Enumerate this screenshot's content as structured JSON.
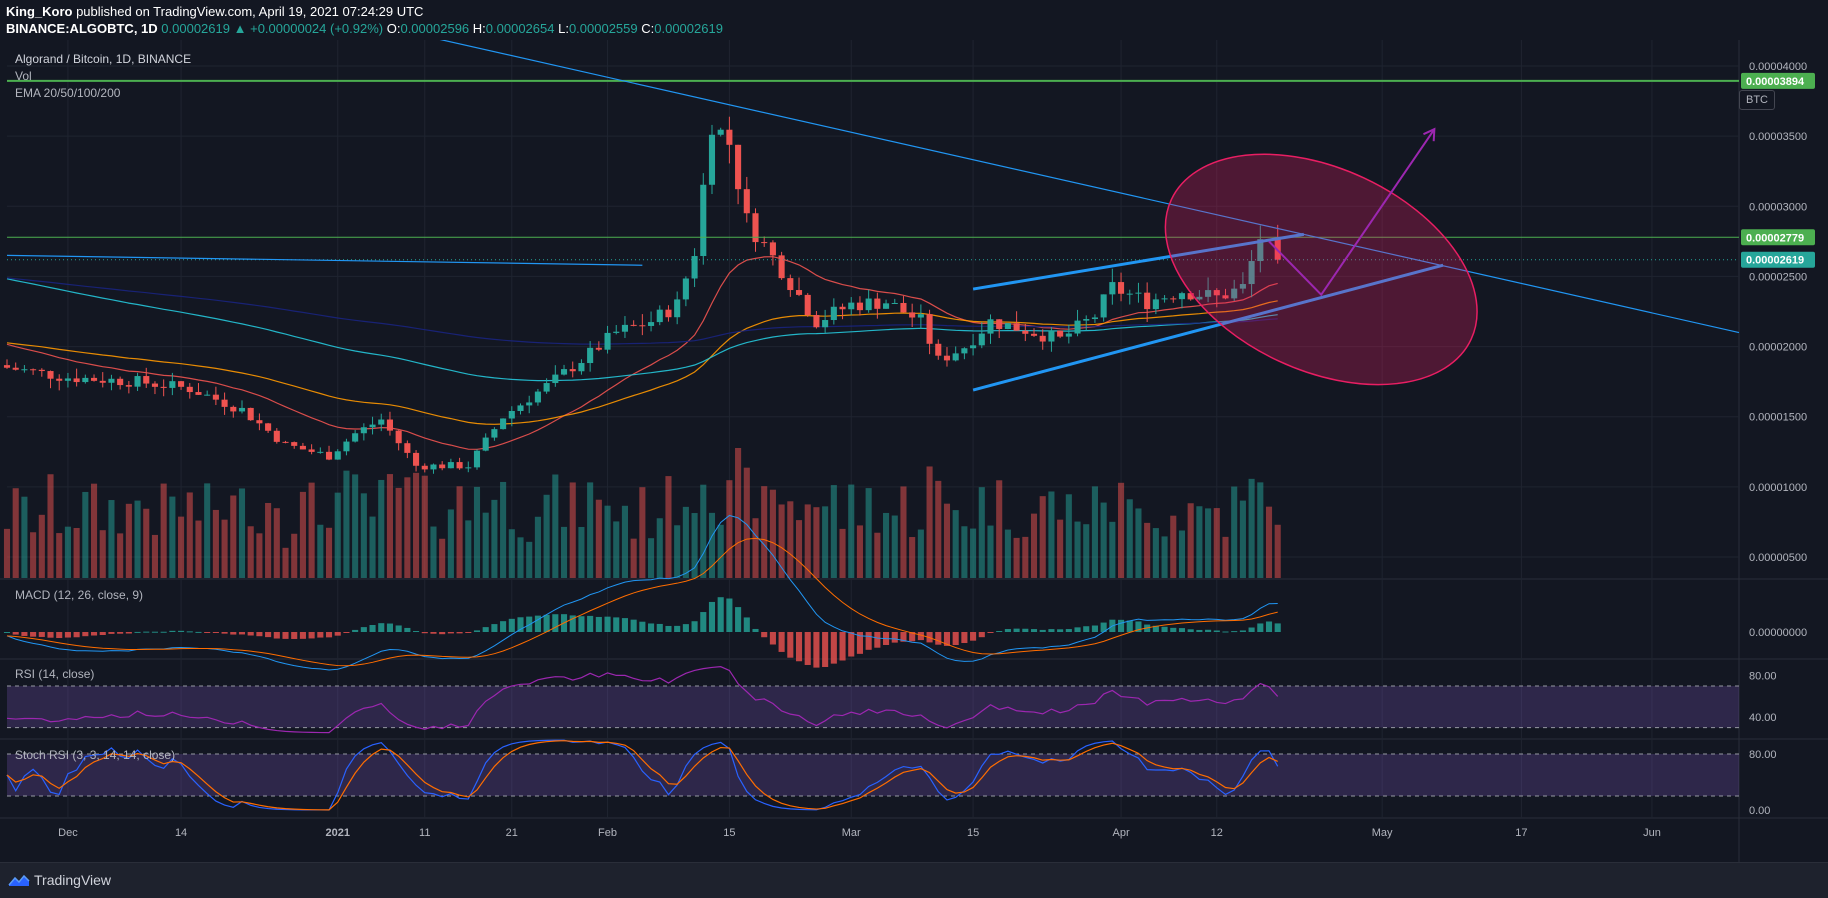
{
  "header": {
    "author": "King_Koro",
    "published_text": "published on TradingView.com, April 19, 2021 07:24:29 UTC",
    "symbol": "BINANCE:ALGOBTC, 1D",
    "last": "0.00002619",
    "change": "+0.00000024 (+0.92%)",
    "o_label": "O:",
    "o": "0.00002596",
    "h_label": "H:",
    "h": "0.00002654",
    "l_label": "L:",
    "l": "0.00002559",
    "c_label": "C:",
    "c": "0.00002619"
  },
  "legend": {
    "title": "Algorand / Bitcoin, 1D, BINANCE",
    "vol": "Vol",
    "ema": "EMA 20/50/100/200",
    "macd": "MACD (12, 26, close, 9)",
    "rsi": "RSI (14, close)",
    "stoch": "Stoch RSI (3, 3, 14, 14, close)"
  },
  "currency": "BTC",
  "footer": {
    "brand": "TradingView"
  },
  "colors": {
    "bg": "#131722",
    "up": "#26a69a",
    "down": "#ef5350",
    "hline": "#4caf50",
    "trend": "#2196f3",
    "arrow": "#9c27b0"
  },
  "chart_data": {
    "type": "candlestick",
    "price_axis": {
      "ticks": [
        "0.00004000",
        "0.00003500",
        "0.00003000",
        "0.00002500",
        "0.00002000",
        "0.00001500",
        "0.00001000",
        "0.00000500"
      ],
      "tick_values": [
        4e-05,
        3.5e-05,
        3e-05,
        2.5e-05,
        2e-05,
        1.5e-05,
        1e-05,
        5e-06
      ],
      "range": [
        3.5e-06,
        4.15e-05
      ],
      "labels": [
        {
          "text": "0.00003894",
          "value": 3.894e-05,
          "color": "#4caf50"
        },
        {
          "text": "0.00002779",
          "value": 2.779e-05,
          "color": "#4caf50"
        },
        {
          "text": "0.00002619",
          "value": 2.619e-05,
          "color": "#26a69a"
        }
      ]
    },
    "time_axis": {
      "labels": [
        {
          "text": "Dec",
          "day": 0
        },
        {
          "text": "14",
          "day": 13
        },
        {
          "text": "2021",
          "day": 31
        },
        {
          "text": "11",
          "day": 41
        },
        {
          "text": "21",
          "day": 51
        },
        {
          "text": "Feb",
          "day": 62
        },
        {
          "text": "15",
          "day": 76
        },
        {
          "text": "Mar",
          "day": 90
        },
        {
          "text": "15",
          "day": 104
        },
        {
          "text": "Apr",
          "day": 121
        },
        {
          "text": "12",
          "day": 132
        },
        {
          "text": "May",
          "day": 151
        },
        {
          "text": "17",
          "day": 167
        },
        {
          "text": "Jun",
          "day": 182
        }
      ],
      "range_days": [
        -7,
        192
      ]
    },
    "anchors": [
      {
        "day": -7,
        "close": 1.85e-05
      },
      {
        "day": 0,
        "close": 1.78e-05
      },
      {
        "day": 8,
        "close": 1.75e-05
      },
      {
        "day": 14,
        "close": 1.7e-05
      },
      {
        "day": 20,
        "close": 1.55e-05
      },
      {
        "day": 25,
        "close": 1.3e-05
      },
      {
        "day": 30,
        "close": 1.22e-05
      },
      {
        "day": 33,
        "close": 1.38e-05
      },
      {
        "day": 36,
        "close": 1.48e-05
      },
      {
        "day": 40,
        "close": 1.15e-05
      },
      {
        "day": 46,
        "close": 1.15e-05
      },
      {
        "day": 50,
        "close": 1.5e-05
      },
      {
        "day": 55,
        "close": 1.72e-05
      },
      {
        "day": 60,
        "close": 1.95e-05
      },
      {
        "day": 63,
        "close": 2.1e-05
      },
      {
        "day": 67,
        "close": 2.18e-05
      },
      {
        "day": 70,
        "close": 2.3e-05
      },
      {
        "day": 72,
        "close": 2.68e-05
      },
      {
        "day": 74,
        "close": 3.6e-05
      },
      {
        "day": 76,
        "close": 3.45e-05
      },
      {
        "day": 78,
        "close": 2.9e-05
      },
      {
        "day": 82,
        "close": 2.55e-05
      },
      {
        "day": 86,
        "close": 2.18e-05
      },
      {
        "day": 90,
        "close": 2.3e-05
      },
      {
        "day": 94,
        "close": 2.32e-05
      },
      {
        "day": 98,
        "close": 2.18e-05
      },
      {
        "day": 100,
        "close": 1.9e-05
      },
      {
        "day": 103,
        "close": 2e-05
      },
      {
        "day": 106,
        "close": 2.18e-05
      },
      {
        "day": 110,
        "close": 2.12e-05
      },
      {
        "day": 114,
        "close": 2.05e-05
      },
      {
        "day": 118,
        "close": 2.22e-05
      },
      {
        "day": 120,
        "close": 2.42e-05
      },
      {
        "day": 124,
        "close": 2.32e-05
      },
      {
        "day": 128,
        "close": 2.4e-05
      },
      {
        "day": 132,
        "close": 2.35e-05
      },
      {
        "day": 135,
        "close": 2.42e-05
      },
      {
        "day": 137,
        "close": 2.78e-05
      },
      {
        "day": 139,
        "close": 2.62e-05
      }
    ],
    "horizontal_lines": [
      3.894e-05,
      2.779e-05
    ],
    "current_price": 2.619e-05,
    "trendlines": [
      {
        "from": [
          -7,
          2.65e-05
        ],
        "to": [
          66,
          2.58e-05
        ]
      },
      {
        "from": [
          37,
          4.27e-05
        ],
        "to": [
          192,
          2.1e-05
        ]
      },
      {
        "from": [
          104,
          1.69e-05
        ],
        "to": [
          158,
          2.58e-05
        ]
      },
      {
        "from": [
          104,
          2.41e-05
        ],
        "to": [
          142,
          2.8e-05
        ]
      }
    ],
    "projection": [
      [
        138,
        2.75e-05
      ],
      [
        144,
        2.37e-05
      ],
      [
        157,
        3.55e-05
      ]
    ],
    "ellipse": {
      "center": [
        144,
        2.55e-05
      ],
      "rx_days": 19,
      "ry": 7.2e-06
    },
    "macd": {
      "range": [
        -1e-06,
        2e-06
      ],
      "zero_label": "0.00000000"
    },
    "rsi": {
      "ticks": [
        "80.00",
        "40.00"
      ],
      "tick_values": [
        80,
        40
      ],
      "range": [
        20,
        95
      ],
      "band": [
        30,
        70
      ]
    },
    "stoch": {
      "ticks": [
        "80.00",
        "0.00"
      ],
      "tick_values": [
        80,
        0
      ],
      "range": [
        -10,
        100
      ],
      "band": [
        20,
        80
      ]
    }
  }
}
